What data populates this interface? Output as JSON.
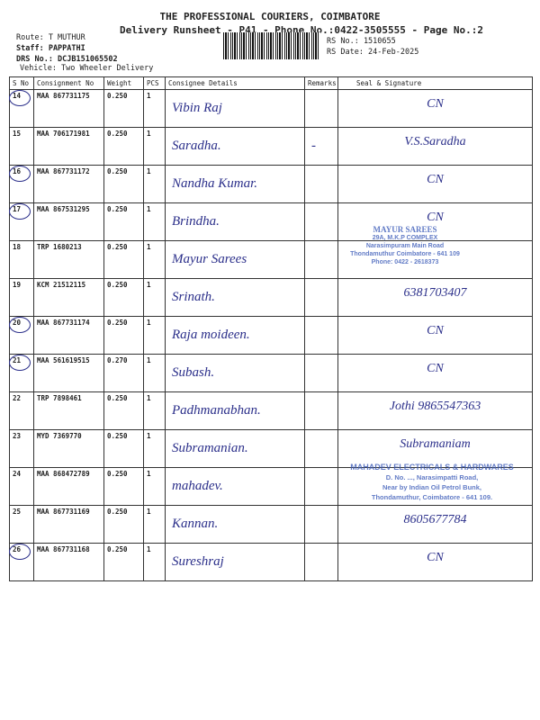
{
  "header": {
    "company": "THE PROFESSIONAL COURIERS, COIMBATORE",
    "subtitle": "Delivery Runsheet - P41 - Phone No.:0422-3505555 - Page No.:2",
    "route": "Route: T MUTHUR",
    "staff": "Staff: PAPPATHI",
    "drs": "DRS No.: DCJB151065502",
    "vehicle": "Vehicle: Two Wheeler Delivery",
    "rs_no": "RS No.: 1510655",
    "rs_date": "RS Date: 24-Feb-2025"
  },
  "columns": [
    "S No",
    "Consignment No",
    "Weight",
    "PCS",
    "Consignee Details",
    "Remarks",
    "Seal & Signature"
  ],
  "rows": [
    {
      "sno": "14",
      "consignment": "MAA 867731175",
      "weight": "0.250",
      "pcs": "1",
      "consignee": "Vibin Raj",
      "remarks": "",
      "signature": "CN",
      "circled": true
    },
    {
      "sno": "15",
      "consignment": "MAA 706171981",
      "weight": "0.250",
      "pcs": "1",
      "consignee": "Saradha.",
      "remarks": "-",
      "signature": "V.S.Saradha",
      "circled": false
    },
    {
      "sno": "16",
      "consignment": "MAA 867731172",
      "weight": "0.250",
      "pcs": "1",
      "consignee": "Nandha Kumar.",
      "remarks": "",
      "signature": "CN",
      "circled": true
    },
    {
      "sno": "17",
      "consignment": "MAA 867531295",
      "weight": "0.250",
      "pcs": "1",
      "consignee": "Brindha.",
      "remarks": "",
      "signature": "CN",
      "circled": true
    },
    {
      "sno": "18",
      "consignment": "TRP 1680213",
      "weight": "0.250",
      "pcs": "1",
      "consignee": "Mayur Sarees",
      "remarks": "",
      "signature": "",
      "circled": false
    },
    {
      "sno": "19",
      "consignment": "KCM 21512115",
      "weight": "0.250",
      "pcs": "1",
      "consignee": "Srinath.",
      "remarks": "",
      "signature": "6381703407",
      "circled": false
    },
    {
      "sno": "20",
      "consignment": "MAA 867731174",
      "weight": "0.250",
      "pcs": "1",
      "consignee": "Raja moideen.",
      "remarks": "",
      "signature": "CN",
      "circled": true
    },
    {
      "sno": "21",
      "consignment": "MAA 561619515",
      "weight": "0.270",
      "pcs": "1",
      "consignee": "Subash.",
      "remarks": "",
      "signature": "CN",
      "circled": true
    },
    {
      "sno": "22",
      "consignment": "TRP 7898461",
      "weight": "0.250",
      "pcs": "1",
      "consignee": "Padhmanabhan.",
      "remarks": "",
      "signature": "Jothi 9865547363",
      "circled": false
    },
    {
      "sno": "23",
      "consignment": "MYD 7369770",
      "weight": "0.250",
      "pcs": "1",
      "consignee": "Subramanian.",
      "remarks": "",
      "signature": "Subramaniam",
      "circled": false
    },
    {
      "sno": "24",
      "consignment": "MAA 868472789",
      "weight": "0.250",
      "pcs": "1",
      "consignee": "mahadev.",
      "remarks": "",
      "signature": "",
      "circled": false
    },
    {
      "sno": "25",
      "consignment": "MAA 867731169",
      "weight": "0.250",
      "pcs": "1",
      "consignee": "Kannan.",
      "remarks": "",
      "signature": "8605677784",
      "circled": false
    },
    {
      "sno": "26",
      "consignment": "MAA 867731168",
      "weight": "0.250",
      "pcs": "1",
      "consignee": "Sureshraj",
      "remarks": "",
      "signature": "CN",
      "circled": true
    }
  ],
  "stamps": {
    "mayur": [
      "MAYUR SAREES",
      "29A, M.K.P COMPLEX",
      "Narasimpuram Main Road",
      "Thondamuthur Coimbatore - 641 109",
      "Phone: 0422 - 2618373"
    ],
    "mahadev": [
      "MAHADEV ELECTRICALS & HARDWARES",
      "D. No. ..., Narasimpatti Road,",
      "Near by Indian Oil Petrol Bunk,",
      "Thondamuthur, Coimbatore - 641 109."
    ]
  }
}
